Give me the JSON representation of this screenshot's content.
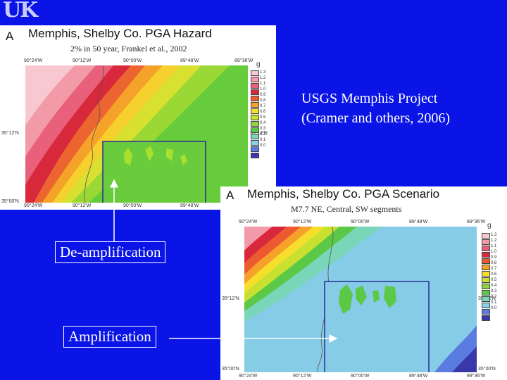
{
  "logo": "UK",
  "project": {
    "line1": "USGS Memphis Project",
    "line2": "(Cramer and others, 2006)"
  },
  "panel_hazard": {
    "letter": "A",
    "title": "Memphis, Shelby Co. PGA Hazard",
    "subtitle": "2% in 50 year, Frankel et al., 2002",
    "top_ticks": [
      "90°24'W",
      "90°12'W",
      "90°00'W",
      "89°48'W",
      "89°36'W"
    ],
    "bottom_ticks": [
      "90°24'W",
      "90°12'W",
      "90°00'W",
      "89°48'W"
    ],
    "left_ticks": [
      "35°12'N",
      "35°00'N"
    ],
    "right_ticks": [
      "35°12'N"
    ],
    "unit": "g",
    "legend_labels": [
      "1.3",
      "1.2",
      "1.1",
      "1.0",
      "0.9",
      "0.8",
      "0.7",
      "0.6",
      "0.5",
      "0.4",
      "0.3",
      "0.2",
      "0.1",
      "0.0"
    ]
  },
  "panel_scenario": {
    "letter": "A",
    "title": "Memphis, Shelby Co. PGA Scenario",
    "subtitle": "M7.7 NE, Central, SW segments",
    "top_ticks": [
      "90°24'W",
      "90°12'W",
      "90°00'W",
      "89°48'W",
      "89°36'W"
    ],
    "bottom_ticks": [
      "90°24'W",
      "90°12'W",
      "90°00'W",
      "89°48'W",
      "89°36'W"
    ],
    "left_ticks": [
      "35°12'N",
      "35°00'N"
    ],
    "right_ticks": [
      "35°12'N",
      "35°00'N"
    ],
    "unit": "g",
    "legend_labels": [
      "1.3",
      "1.2",
      "1.1",
      "1.0",
      "0.9",
      "0.8",
      "0.7",
      "0.6",
      "0.5",
      "0.4",
      "0.3",
      "0.2",
      "0.1",
      "0.0"
    ]
  },
  "labels": {
    "deamp": "De-amplification",
    "amp": "Amplification"
  },
  "colors": {
    "background": "#0a14e6",
    "legend_scale": [
      "#f7c8d0",
      "#f29aa8",
      "#e8607a",
      "#d8283c",
      "#ee5a30",
      "#f6a22a",
      "#f6df2c",
      "#c8e030",
      "#8ed43c",
      "#5cc848",
      "#7ad6b8",
      "#8ecfe8",
      "#5a7be0",
      "#3a38a8"
    ]
  }
}
